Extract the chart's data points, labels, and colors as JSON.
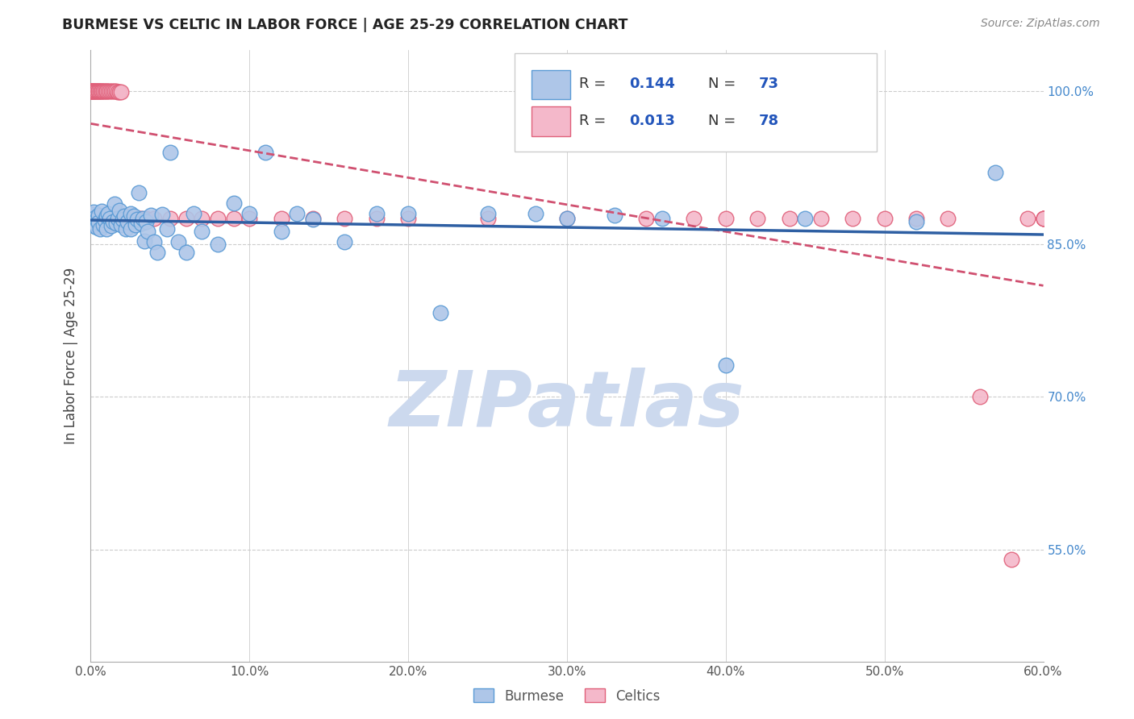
{
  "title": "BURMESE VS CELTIC IN LABOR FORCE | AGE 25-29 CORRELATION CHART",
  "source": "Source: ZipAtlas.com",
  "ylabel": "In Labor Force | Age 25-29",
  "xmin": 0.0,
  "xmax": 0.6,
  "ymin": 0.44,
  "ymax": 1.04,
  "xticks": [
    0.0,
    0.1,
    0.2,
    0.3,
    0.4,
    0.5,
    0.6
  ],
  "xticklabels": [
    "0.0%",
    "10.0%",
    "20.0%",
    "30.0%",
    "40.0%",
    "50.0%",
    "60.0%"
  ],
  "yticks": [
    0.55,
    0.7,
    0.85,
    1.0
  ],
  "yticklabels": [
    "55.0%",
    "70.0%",
    "85.0%",
    "100.0%"
  ],
  "grid_color": "#cccccc",
  "burmese_color": "#aec6e8",
  "burmese_edge_color": "#5b9bd5",
  "celtics_color": "#f4b8ca",
  "celtics_edge_color": "#e0607a",
  "burmese_R": 0.144,
  "burmese_N": 73,
  "celtics_R": 0.013,
  "celtics_N": 78,
  "trend_burmese_color": "#2e5fa3",
  "trend_celtics_color": "#d05070",
  "watermark_color": "#ccd9ee",
  "burmese_x": [
    0.0,
    0.0,
    0.001,
    0.001,
    0.001,
    0.002,
    0.002,
    0.003,
    0.003,
    0.004,
    0.004,
    0.005,
    0.005,
    0.006,
    0.007,
    0.008,
    0.009,
    0.01,
    0.01,
    0.011,
    0.012,
    0.013,
    0.014,
    0.015,
    0.016,
    0.017,
    0.018,
    0.019,
    0.02,
    0.021,
    0.022,
    0.023,
    0.025,
    0.025,
    0.027,
    0.028,
    0.029,
    0.03,
    0.032,
    0.033,
    0.034,
    0.035,
    0.036,
    0.038,
    0.04,
    0.042,
    0.045,
    0.048,
    0.05,
    0.055,
    0.06,
    0.065,
    0.07,
    0.08,
    0.09,
    0.1,
    0.11,
    0.12,
    0.13,
    0.14,
    0.16,
    0.18,
    0.2,
    0.22,
    0.25,
    0.28,
    0.3,
    0.33,
    0.36,
    0.4,
    0.45,
    0.52,
    0.57
  ],
  "burmese_y": [
    0.875,
    0.875,
    0.877,
    0.879,
    0.872,
    0.881,
    0.868,
    0.876,
    0.87,
    0.874,
    0.866,
    0.878,
    0.871,
    0.865,
    0.882,
    0.869,
    0.873,
    0.877,
    0.865,
    0.88,
    0.875,
    0.868,
    0.872,
    0.889,
    0.87,
    0.875,
    0.883,
    0.869,
    0.874,
    0.877,
    0.865,
    0.872,
    0.88,
    0.865,
    0.877,
    0.869,
    0.874,
    0.9,
    0.87,
    0.875,
    0.853,
    0.872,
    0.862,
    0.878,
    0.852,
    0.842,
    0.879,
    0.865,
    0.94,
    0.852,
    0.842,
    0.88,
    0.862,
    0.85,
    0.89,
    0.88,
    0.94,
    0.862,
    0.88,
    0.874,
    0.852,
    0.88,
    0.88,
    0.782,
    0.88,
    0.88,
    0.875,
    0.878,
    0.875,
    0.731,
    0.875,
    0.872,
    0.92
  ],
  "celtics_x": [
    0.0,
    0.0,
    0.0,
    0.0,
    0.0,
    0.001,
    0.001,
    0.001,
    0.001,
    0.001,
    0.002,
    0.002,
    0.002,
    0.003,
    0.003,
    0.003,
    0.004,
    0.004,
    0.005,
    0.005,
    0.005,
    0.006,
    0.006,
    0.007,
    0.007,
    0.008,
    0.008,
    0.009,
    0.01,
    0.01,
    0.011,
    0.012,
    0.013,
    0.014,
    0.015,
    0.016,
    0.017,
    0.018,
    0.019,
    0.02,
    0.021,
    0.022,
    0.025,
    0.028,
    0.03,
    0.032,
    0.035,
    0.04,
    0.05,
    0.06,
    0.07,
    0.08,
    0.09,
    0.1,
    0.12,
    0.14,
    0.16,
    0.18,
    0.2,
    0.25,
    0.3,
    0.35,
    0.38,
    0.4,
    0.42,
    0.44,
    0.46,
    0.48,
    0.5,
    0.52,
    0.54,
    0.56,
    0.58,
    0.59,
    0.6,
    0.6,
    0.6,
    0.6
  ],
  "celtics_y": [
    1.0,
    1.0,
    1.0,
    1.0,
    1.0,
    1.0,
    1.0,
    1.0,
    1.0,
    1.0,
    1.0,
    1.0,
    1.0,
    1.0,
    1.0,
    1.0,
    1.0,
    1.0,
    1.0,
    1.0,
    1.0,
    1.0,
    1.0,
    1.0,
    1.0,
    1.0,
    1.0,
    1.0,
    1.0,
    1.0,
    1.0,
    1.0,
    1.0,
    1.0,
    1.0,
    1.0,
    0.999,
    0.999,
    0.999,
    0.875,
    0.875,
    0.875,
    0.875,
    0.875,
    0.875,
    0.875,
    0.875,
    0.875,
    0.875,
    0.875,
    0.875,
    0.875,
    0.875,
    0.875,
    0.875,
    0.875,
    0.875,
    0.875,
    0.875,
    0.875,
    0.875,
    0.875,
    0.875,
    0.875,
    0.875,
    0.875,
    0.875,
    0.875,
    0.875,
    0.875,
    0.875,
    0.7,
    0.54,
    0.875,
    0.875,
    0.875,
    0.875,
    0.875
  ]
}
